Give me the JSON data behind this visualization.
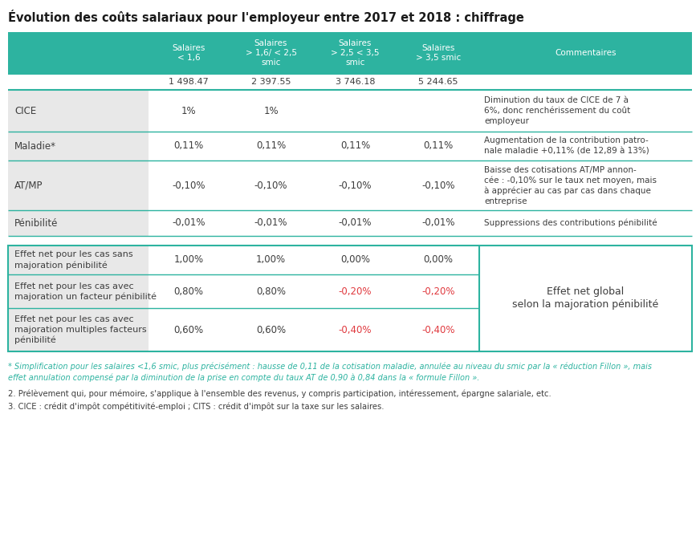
{
  "title": "Évolution des coûts salariaux pour l'employeur entre 2017 et 2018 : chiffrage",
  "title_color": "#1a1a1a",
  "title_fontsize": 10.5,
  "header_bg": "#2db3a0",
  "header_text_color": "#ffffff",
  "header_labels": [
    "Salaires\n< 1,6",
    "Salaires\n> 1,6/ < 2,5\nsmic",
    "Salaires\n> 2,5 < 3,5\nsmic",
    "Salaires\n> 3,5 smic",
    "Commentaires"
  ],
  "subheader_values": [
    "1 498.47",
    "2 397.55",
    "3 746.18",
    "5 244.65"
  ],
  "row_label_bg": "#e8e8e8",
  "row_bg_white": "#ffffff",
  "teal_color": "#2db3a0",
  "red_color": "#e0393e",
  "dark_text": "#3d3d3d",
  "rows": [
    {
      "label": "CICE",
      "values": [
        "1%",
        "1%",
        "",
        ""
      ],
      "comment": [
        "Diminution du taux de CICE de 7 à",
        "6%, donc renchérissement du coût",
        "employeur"
      ],
      "value_colors": [
        "#3d3d3d",
        "#3d3d3d",
        "#3d3d3d",
        "#3d3d3d"
      ]
    },
    {
      "label": "Maladie*",
      "values": [
        "0,11%",
        "0,11%",
        "0,11%",
        "0,11%"
      ],
      "comment": [
        "Augmentation de la contribution patro-",
        "nale maladie +0,11% (de 12,89 à 13%)"
      ],
      "value_colors": [
        "#3d3d3d",
        "#3d3d3d",
        "#3d3d3d",
        "#3d3d3d"
      ]
    },
    {
      "label": "AT/MP",
      "values": [
        "-0,10%",
        "-0,10%",
        "-0,10%",
        "-0,10%"
      ],
      "comment": [
        "Baisse des cotisations AT/MP annon-",
        "cée : -0,10% sur le taux net moyen, mais",
        "à apprécier au cas par cas dans chaque",
        "entreprise"
      ],
      "value_colors": [
        "#3d3d3d",
        "#3d3d3d",
        "#3d3d3d",
        "#3d3d3d"
      ]
    },
    {
      "label": "Pénibilité",
      "values": [
        "-0,01%",
        "-0,01%",
        "-0,01%",
        "-0,01%"
      ],
      "comment": [
        "Suppressions des contributions pénibilité"
      ],
      "value_colors": [
        "#3d3d3d",
        "#3d3d3d",
        "#3d3d3d",
        "#3d3d3d"
      ]
    }
  ],
  "effect_rows": [
    {
      "label": [
        "Effet net pour les cas sans",
        "majoration pénibilité"
      ],
      "values": [
        "1,00%",
        "1,00%",
        "0,00%",
        "0,00%"
      ],
      "value_colors": [
        "#3d3d3d",
        "#3d3d3d",
        "#3d3d3d",
        "#3d3d3d"
      ]
    },
    {
      "label": [
        "Effet net pour les cas avec",
        "majoration un facteur pénibilité"
      ],
      "values": [
        "0,80%",
        "0,80%",
        "-0,20%",
        "-0,20%"
      ],
      "value_colors": [
        "#3d3d3d",
        "#3d3d3d",
        "#e0393e",
        "#e0393e"
      ]
    },
    {
      "label": [
        "Effet net pour les cas avec",
        "majoration multiples facteurs",
        "pénibilité"
      ],
      "values": [
        "0,60%",
        "0,60%",
        "-0,40%",
        "-0,40%"
      ],
      "value_colors": [
        "#3d3d3d",
        "#3d3d3d",
        "#e0393e",
        "#e0393e"
      ]
    }
  ],
  "effect_comment": [
    "Effet net global",
    "selon la majoration pénibilité"
  ],
  "footnote1_italic": "* Simplification pour les salaires <1,6 smic, plus précisément : hausse de 0,11 de la cotisation maladie, annulée au niveau du smic par la « réduction Fillon », mais",
  "footnote1b_italic": "effet annulation compensé par la diminution de la prise en compte du taux AT de 0,90 à 0,84 dans la « formule Fillon ».",
  "footnote2": "2. Prélèvement qui, pour mémoire, s'applique à l'ensemble des revenus, y compris participation, intéressement, épargne salariale, etc.",
  "footnote3": "3. CICE : crédit d'impôt compétitivité-emploi ; CITS : crédit d'impôt sur la taxe sur les salaires."
}
